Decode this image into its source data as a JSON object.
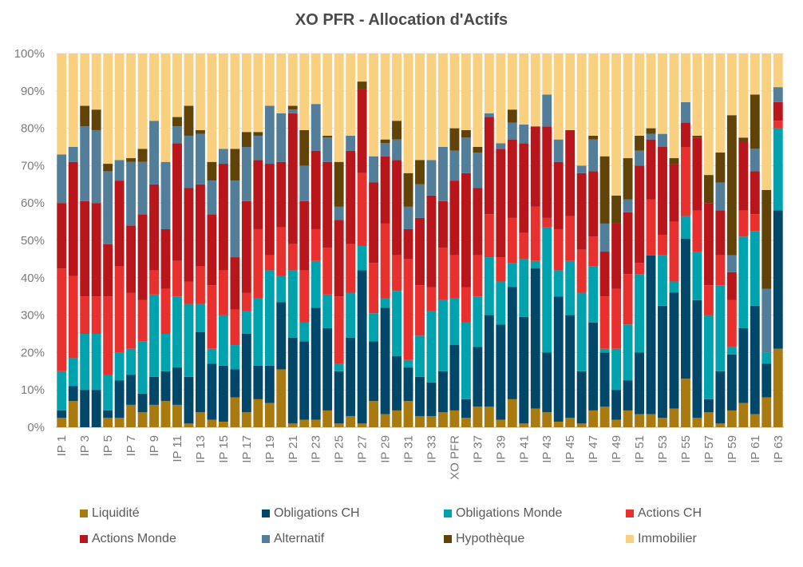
{
  "chart_data": {
    "type": "bar",
    "stacked": true,
    "normalized": true,
    "title": "XO PFR - Allocation d'Actifs",
    "xlabel": "",
    "ylabel": "",
    "ylim": [
      0,
      100
    ],
    "yticks": [
      "0%",
      "10%",
      "20%",
      "30%",
      "40%",
      "50%",
      "60%",
      "70%",
      "80%",
      "90%",
      "100%"
    ],
    "grid": true,
    "legend_position": "bottom",
    "categories": [
      "IP 1",
      "IP 2",
      "IP 3",
      "IP 4",
      "IP 5",
      "IP 6",
      "IP 7",
      "IP 8",
      "IP 9",
      "IP 10",
      "IP 11",
      "IP 12",
      "IP 13",
      "IP 14",
      "IP 15",
      "IP 16",
      "IP 17",
      "IP 18",
      "IP 19",
      "IP 20",
      "IP 21",
      "IP 22",
      "IP 23",
      "IP 24",
      "IP 25",
      "IP 26",
      "IP 27",
      "IP 28",
      "IP 29",
      "IP 30",
      "IP 31",
      "IP 32",
      "IP 33",
      "IP 34",
      "XO PFR",
      "IP 36",
      "IP 37",
      "IP 38",
      "IP 39",
      "IP 40",
      "IP 41",
      "IP 42",
      "IP 43",
      "IP 44",
      "IP 45",
      "IP 46",
      "IP 47",
      "IP 48",
      "IP 49",
      "IP 50",
      "IP 51",
      "IP 52",
      "IP 53",
      "IP 54",
      "IP 55",
      "IP 56",
      "IP 57",
      "IP 58",
      "IP 59",
      "IP 60",
      "IP 61",
      "IP 62",
      "IP 63"
    ],
    "visible_xtick_labels": [
      "IP 1",
      "IP 3",
      "IP 5",
      "IP 7",
      "IP 9",
      "IP 11",
      "IP 13",
      "IP 15",
      "IP 17",
      "IP 19",
      "IP 21",
      "IP 23",
      "IP 25",
      "IP 27",
      "IP 29",
      "IP 31",
      "IP 33",
      "XO PFR",
      "IP 37",
      "IP 39",
      "IP 41",
      "IP 43",
      "IP 45",
      "IP 47",
      "IP 49",
      "IP 51",
      "IP 53",
      "IP 55",
      "IP 57",
      "IP 59",
      "IP 61",
      "IP 63"
    ],
    "series": [
      {
        "name": "Liquidité",
        "color": "#a87a10",
        "values": [
          2.5,
          7,
          0,
          0,
          2.5,
          2.5,
          6,
          4,
          6,
          7,
          6,
          1,
          4,
          2,
          1.5,
          8,
          4,
          7.5,
          6.5,
          15.5,
          1,
          2,
          2,
          4.5,
          1,
          3,
          1,
          7,
          3.5,
          4.5,
          7,
          3,
          3,
          4,
          4.5,
          2.5,
          5.5,
          5.5,
          2,
          7.5,
          1,
          5,
          4,
          1.5,
          2.5,
          1,
          4.5,
          5.5,
          2,
          4.5,
          3.5,
          3.5,
          2.5,
          5,
          13,
          2.5,
          4,
          1,
          4.5,
          6.5,
          3.5,
          8,
          21
        ]
      },
      {
        "name": "Obligations CH",
        "color": "#00476a",
        "values": [
          2,
          4,
          10,
          10,
          2,
          10,
          8,
          5,
          7.5,
          8,
          10,
          12.5,
          21.5,
          15,
          15,
          7.5,
          21,
          9,
          10,
          18,
          23,
          21,
          30,
          22,
          14,
          21,
          41,
          16,
          28.5,
          14.5,
          9,
          10.5,
          9,
          11,
          17.5,
          5,
          16,
          24.5,
          25.5,
          30,
          28.5,
          37.5,
          16,
          33.5,
          27.5,
          14,
          23.5,
          14.5,
          8,
          8,
          16.5,
          42.5,
          30,
          31,
          37.5,
          31.5,
          3.5,
          14,
          15,
          20,
          29,
          9,
          37
        ]
      },
      {
        "name": "Obligations Monde",
        "color": "#00a3ad",
        "values": [
          10.5,
          7.5,
          15,
          15,
          9.5,
          7.5,
          7,
          14,
          22,
          10,
          19,
          19.5,
          7.5,
          4,
          13.5,
          6.5,
          6,
          18,
          25.5,
          7,
          18,
          5,
          12.5,
          9,
          2,
          12,
          6.5,
          7.5,
          2.5,
          17.5,
          2,
          11,
          19,
          19,
          12.5,
          20.5,
          13.5,
          15.5,
          11.5,
          6.5,
          15.5,
          2,
          33.5,
          7,
          14.5,
          21,
          15,
          1,
          11,
          15,
          21,
          0,
          13.5,
          3,
          6,
          13,
          22.5,
          23,
          2,
          24.5,
          20,
          3,
          22
        ]
      },
      {
        "name": "Actions CH",
        "color": "#e8302e",
        "values": [
          27.5,
          22,
          10,
          10,
          21,
          23,
          15,
          11,
          6.5,
          12,
          9.5,
          6,
          10,
          17,
          12,
          9.5,
          5,
          18.5,
          4,
          13,
          7,
          14,
          8.5,
          12.5,
          18,
          13,
          19.5,
          13.5,
          20,
          9.5,
          27,
          13.5,
          6.5,
          14,
          11.5,
          9.5,
          11,
          11.5,
          6.5,
          12,
          7,
          14.5,
          2.5,
          11,
          12,
          11.5,
          8,
          14,
          16,
          13.5,
          3,
          15,
          5.5,
          16,
          18.5,
          11,
          8,
          8,
          12.5,
          7,
          4.5,
          0,
          2
        ]
      },
      {
        "name": "Actions Monde",
        "color": "#b8161b",
        "values": [
          17.5,
          30.5,
          25.5,
          25,
          14,
          23,
          18,
          23,
          23,
          16,
          31.5,
          25,
          22,
          19,
          28.5,
          14,
          24.5,
          18.5,
          24.5,
          17.5,
          35,
          18.5,
          21,
          23,
          20.5,
          25,
          22.5,
          21.5,
          18,
          25.5,
          8,
          18,
          24.5,
          12.5,
          20,
          30.5,
          18,
          26,
          29,
          21,
          24,
          21.5,
          24.5,
          18,
          23,
          20.5,
          17.5,
          12,
          17.5,
          16.5,
          26,
          16,
          23.5,
          15.5,
          6.5,
          19.5,
          22,
          12,
          7.5,
          18.5,
          11.5,
          0,
          5
        ]
      },
      {
        "name": "Alternatif",
        "color": "#527e99",
        "values": [
          13,
          4,
          20,
          19.5,
          19.5,
          5.5,
          17,
          14,
          17,
          18,
          4.5,
          14,
          13.5,
          9,
          4,
          20.5,
          14.5,
          6.5,
          15.5,
          13,
          1,
          9.5,
          12.5,
          6.5,
          3.5,
          4,
          0,
          7,
          3.5,
          5.5,
          6,
          9,
          9.5,
          14.5,
          8,
          9.5,
          9.5,
          1,
          1.5,
          4.5,
          5,
          0,
          8.5,
          6,
          0,
          2,
          8.5,
          7.5,
          0,
          3.5,
          4,
          1.5,
          3.5,
          0,
          5.5,
          0,
          0,
          7.5,
          4.5,
          0,
          6,
          17,
          4
        ]
      },
      {
        "name": "Hypothèque",
        "color": "#614308",
        "values": [
          0,
          0,
          5.5,
          5.5,
          2,
          0,
          1,
          3.5,
          0,
          0,
          2.5,
          8,
          1,
          5,
          0,
          8.5,
          4,
          1,
          0,
          0,
          1,
          9.5,
          0,
          0.5,
          12,
          0,
          2,
          0,
          1,
          5,
          9,
          6.5,
          0,
          0,
          6,
          2,
          1.5,
          0,
          0,
          3.5,
          0,
          0,
          0,
          0,
          0,
          0,
          1,
          18,
          7.5,
          11,
          4,
          1.5,
          0,
          1.5,
          0,
          0.5,
          7.5,
          8,
          37.5,
          1,
          14.5,
          26.5,
          0
        ]
      },
      {
        "name": "Immobilier",
        "color": "#f8d080",
        "values": [
          27,
          25,
          14,
          15,
          29.5,
          28.5,
          28,
          25.5,
          18,
          29,
          17,
          14,
          20.5,
          29,
          25.5,
          25.5,
          21,
          21,
          14,
          16,
          14,
          20.5,
          13.5,
          22,
          29,
          22,
          7.5,
          27.5,
          23,
          18,
          32,
          28.5,
          28.5,
          25,
          20,
          20.5,
          25,
          16,
          24,
          15,
          19,
          19.5,
          11,
          23,
          20.5,
          30,
          22,
          27.5,
          38,
          28,
          22,
          20,
          21.5,
          28,
          13,
          22,
          32.5,
          26.5,
          16.5,
          22.5,
          11,
          36.5,
          9
        ]
      }
    ]
  }
}
